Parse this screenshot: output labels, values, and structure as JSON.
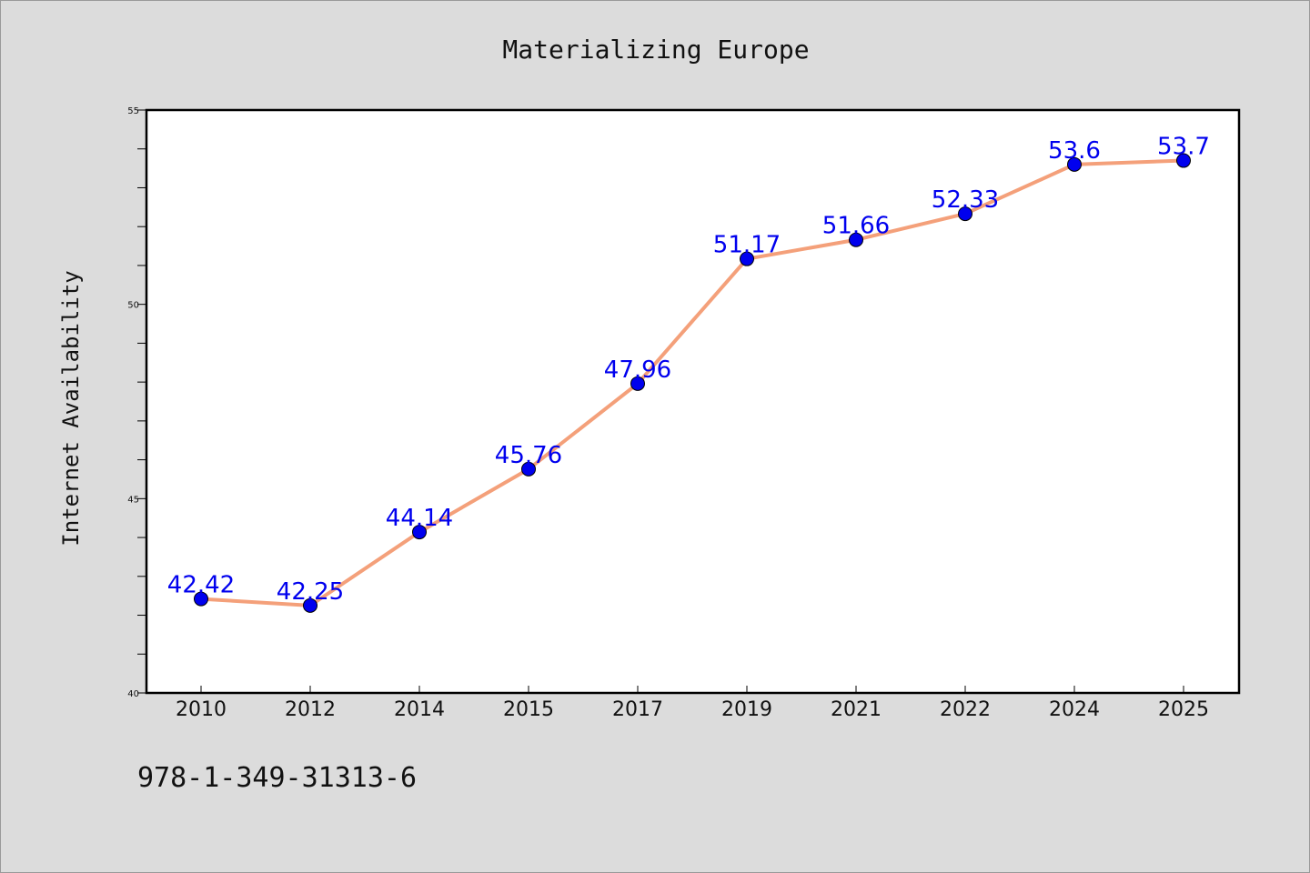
{
  "chart_data": {
    "type": "line",
    "title": "Materializing Europe",
    "xlabel": "",
    "ylabel": "Internet Availability",
    "categories": [
      "2010",
      "2012",
      "2014",
      "2015",
      "2017",
      "2019",
      "2021",
      "2022",
      "2024",
      "2025"
    ],
    "values": [
      42.42,
      42.25,
      44.14,
      45.76,
      47.96,
      51.17,
      51.66,
      52.33,
      53.6,
      53.7
    ],
    "data_labels": [
      "42.42",
      "42.25",
      "44.14",
      "45.76",
      "47.96",
      "51.17",
      "51.66",
      "52.33",
      "53.6",
      "53.7"
    ],
    "ylim": [
      40,
      55
    ],
    "yticks": [
      "40",
      "45",
      "50",
      "55"
    ],
    "grid": false,
    "line_color": "#f4a07a",
    "marker_color": "#0000ee",
    "label_color": "#0000ee"
  },
  "footer": {
    "isbn": "978-1-349-31313-6"
  }
}
